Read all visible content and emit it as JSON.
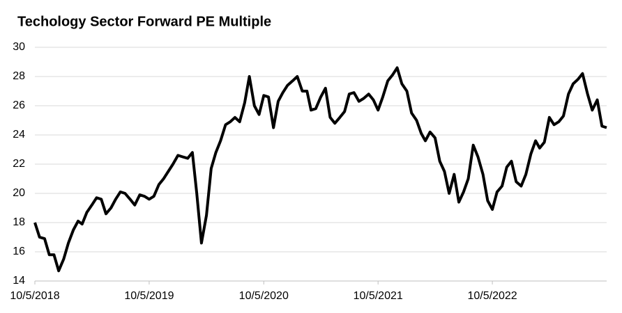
{
  "chart_data": {
    "type": "line",
    "title": "Techology Sector Forward PE Multiple",
    "x": [
      "2018-10-05",
      "2018-10-20",
      "2018-11-05",
      "2018-11-20",
      "2018-12-05",
      "2018-12-20",
      "2019-01-05",
      "2019-01-20",
      "2019-02-05",
      "2019-02-20",
      "2019-03-05",
      "2019-03-20",
      "2019-04-05",
      "2019-04-20",
      "2019-05-05",
      "2019-05-20",
      "2019-06-05",
      "2019-06-20",
      "2019-07-05",
      "2019-07-20",
      "2019-08-05",
      "2019-08-20",
      "2019-09-05",
      "2019-09-20",
      "2019-10-05",
      "2019-10-20",
      "2019-11-05",
      "2019-11-20",
      "2019-12-05",
      "2019-12-20",
      "2020-01-05",
      "2020-01-20",
      "2020-02-05",
      "2020-02-20",
      "2020-03-05",
      "2020-03-20",
      "2020-04-05",
      "2020-04-20",
      "2020-05-05",
      "2020-05-20",
      "2020-06-05",
      "2020-06-20",
      "2020-07-05",
      "2020-07-20",
      "2020-08-05",
      "2020-08-20",
      "2020-09-05",
      "2020-09-20",
      "2020-10-05",
      "2020-10-20",
      "2020-11-05",
      "2020-11-20",
      "2020-12-05",
      "2020-12-20",
      "2021-01-05",
      "2021-01-20",
      "2021-02-05",
      "2021-02-20",
      "2021-03-05",
      "2021-03-20",
      "2021-04-05",
      "2021-04-20",
      "2021-05-05",
      "2021-05-20",
      "2021-06-05",
      "2021-06-20",
      "2021-07-05",
      "2021-07-20",
      "2021-08-05",
      "2021-08-20",
      "2021-09-05",
      "2021-09-20",
      "2021-10-05",
      "2021-10-20",
      "2021-11-05",
      "2021-11-20",
      "2021-12-05",
      "2021-12-20",
      "2022-01-05",
      "2022-01-20",
      "2022-02-05",
      "2022-02-20",
      "2022-03-05",
      "2022-03-20",
      "2022-04-05",
      "2022-04-20",
      "2022-05-05",
      "2022-05-20",
      "2022-06-05",
      "2022-06-20",
      "2022-07-05",
      "2022-07-20",
      "2022-08-05",
      "2022-08-20",
      "2022-09-05",
      "2022-09-20",
      "2022-10-05",
      "2022-10-20",
      "2022-11-05",
      "2022-11-20",
      "2022-12-05",
      "2022-12-20",
      "2023-01-05",
      "2023-01-20",
      "2023-02-05",
      "2023-02-20",
      "2023-03-05",
      "2023-03-20",
      "2023-04-05",
      "2023-04-20",
      "2023-05-05",
      "2023-05-20",
      "2023-06-05",
      "2023-06-20",
      "2023-07-05",
      "2023-07-20",
      "2023-08-05",
      "2023-08-20",
      "2023-09-05",
      "2023-09-20",
      "2023-10-05"
    ],
    "series": [
      {
        "name": "Forward PE",
        "color": "#000000",
        "values": [
          18.0,
          17.0,
          16.9,
          15.8,
          15.8,
          14.7,
          15.5,
          16.6,
          17.5,
          18.1,
          17.9,
          18.7,
          19.2,
          19.7,
          19.6,
          18.6,
          19.0,
          19.6,
          20.1,
          20.0,
          19.6,
          19.2,
          19.9,
          19.8,
          19.6,
          19.8,
          20.6,
          21.0,
          21.5,
          22.0,
          22.6,
          22.5,
          22.4,
          22.8,
          20.0,
          16.6,
          18.5,
          21.7,
          22.8,
          23.6,
          24.7,
          24.9,
          25.2,
          24.9,
          26.2,
          28.0,
          26.0,
          25.4,
          26.7,
          26.6,
          24.5,
          26.3,
          26.9,
          27.4,
          27.7,
          28.0,
          27.0,
          27.0,
          25.7,
          25.8,
          26.6,
          27.2,
          25.2,
          24.8,
          25.2,
          25.6,
          26.8,
          26.9,
          26.3,
          26.5,
          26.8,
          26.4,
          25.7,
          26.6,
          27.7,
          28.1,
          28.6,
          27.5,
          27.0,
          25.5,
          25.0,
          24.1,
          23.6,
          24.2,
          23.8,
          22.2,
          21.5,
          20.0,
          21.3,
          19.4,
          20.1,
          21.0,
          23.3,
          22.5,
          21.3,
          19.5,
          18.9,
          20.1,
          20.5,
          21.8,
          22.2,
          20.8,
          20.5,
          21.3,
          22.7,
          23.6,
          23.1,
          23.5,
          25.2,
          24.7,
          24.9,
          25.3,
          26.8,
          27.5,
          27.8,
          28.2,
          26.8,
          25.7,
          26.4,
          24.6,
          24.5
        ]
      }
    ],
    "xlim": [
      "2018-10-05",
      "2023-10-05"
    ],
    "xticks": [
      {
        "value": "2018-10-05",
        "label": "10/5/2018"
      },
      {
        "value": "2019-10-05",
        "label": "10/5/2019"
      },
      {
        "value": "2020-10-05",
        "label": "10/5/2020"
      },
      {
        "value": "2021-10-05",
        "label": "10/5/2021"
      },
      {
        "value": "2022-10-05",
        "label": "10/5/2022"
      }
    ],
    "ylim": [
      14,
      30
    ],
    "yticks": [
      14,
      16,
      18,
      20,
      22,
      24,
      26,
      28,
      30
    ],
    "grid": true
  }
}
